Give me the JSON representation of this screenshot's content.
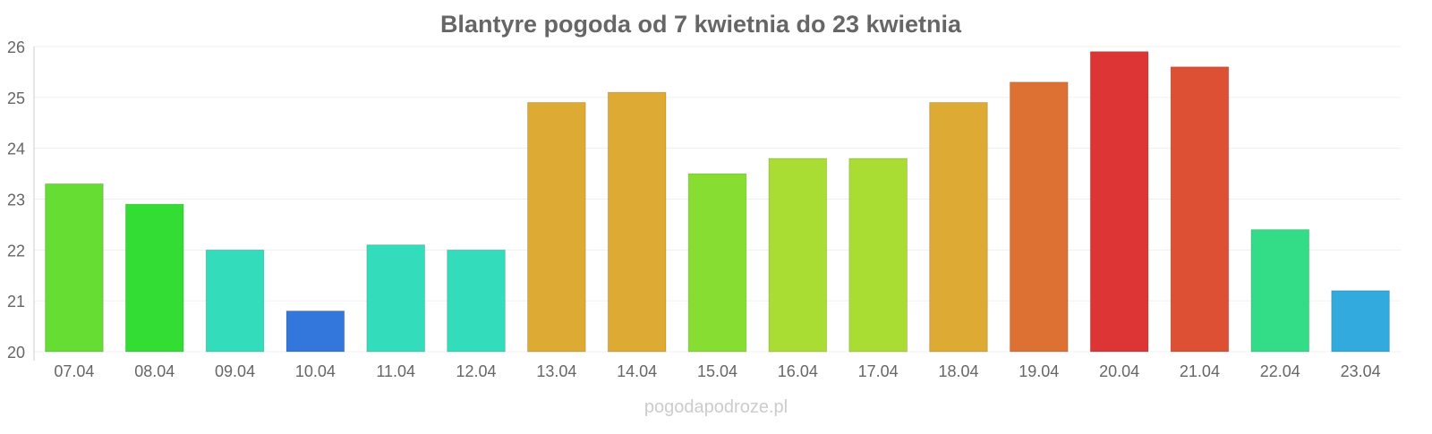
{
  "chart_data": {
    "type": "bar",
    "title": "Blantyre pogoda od 7 kwietnia do 23 kwietnia",
    "xlabel": "",
    "ylabel": "",
    "ylim": [
      20,
      26
    ],
    "yticks": [
      "20",
      "21",
      "22",
      "23",
      "24",
      "25",
      "26"
    ],
    "grid": true,
    "categories": [
      "07.04",
      "08.04",
      "09.04",
      "10.04",
      "11.04",
      "12.04",
      "13.04",
      "14.04",
      "15.04",
      "16.04",
      "17.04",
      "18.04",
      "19.04",
      "20.04",
      "21.04",
      "22.04",
      "23.04"
    ],
    "values": [
      23.3,
      22.9,
      22.0,
      20.8,
      22.1,
      22.0,
      24.9,
      25.1,
      23.5,
      23.8,
      23.8,
      24.9,
      25.3,
      25.9,
      25.6,
      22.4,
      21.2
    ],
    "colors": [
      "#66dd33",
      "#33dd33",
      "#33ddbb",
      "#3377dd",
      "#33ddbb",
      "#33ddbb",
      "#ddaa33",
      "#ddaa33",
      "#88dd33",
      "#aadd33",
      "#aadd33",
      "#ddaa33",
      "#dd7033",
      "#dd3535",
      "#dd5033",
      "#33dd88",
      "#33aadd"
    ]
  },
  "footer": {
    "watermark": "pogodapodroze.pl"
  }
}
